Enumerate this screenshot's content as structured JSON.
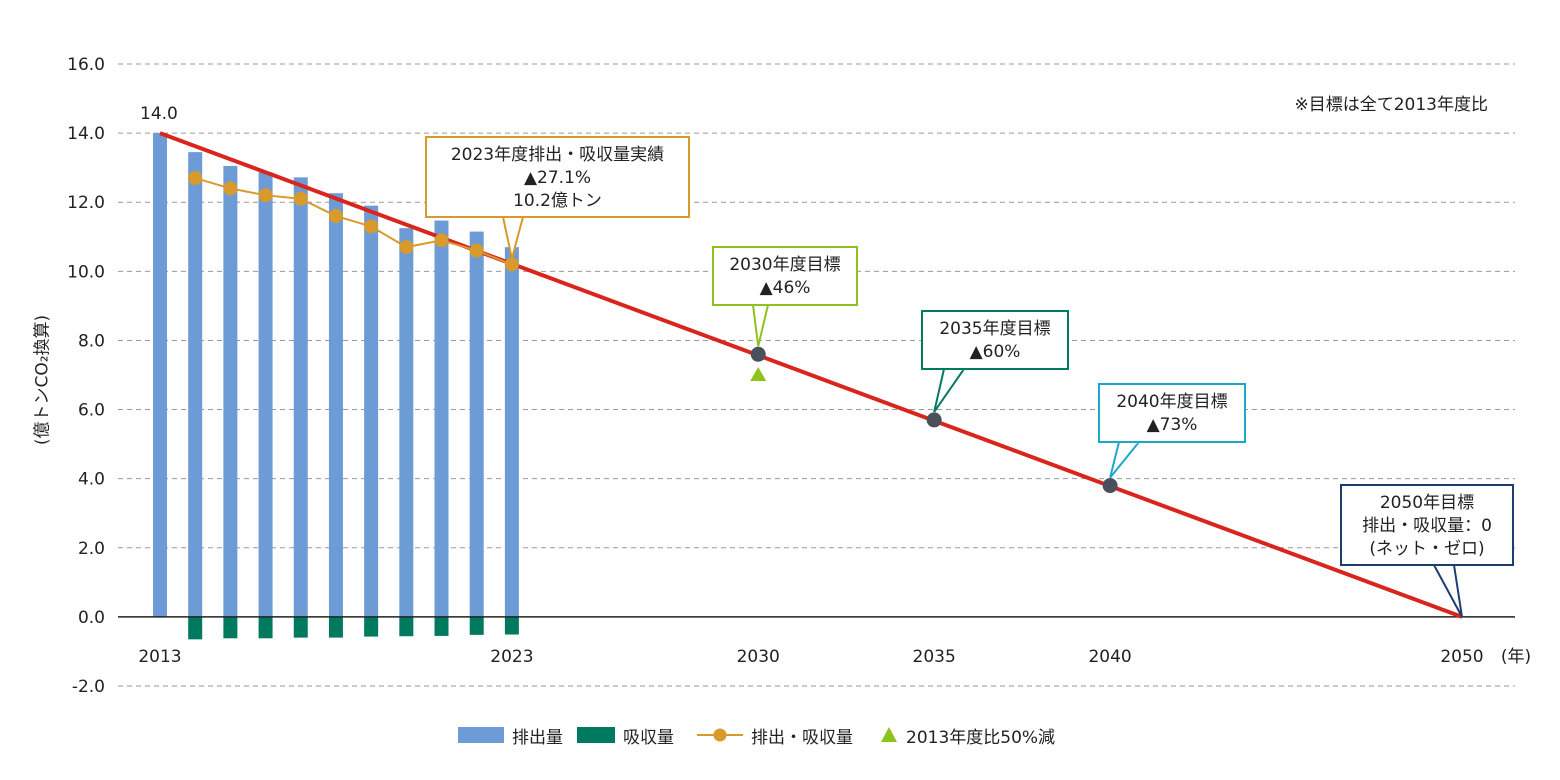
{
  "chart_data": {
    "type": "bar",
    "ylabel": "(億トンCO₂換算)",
    "ylim": [
      -2.0,
      16.0
    ],
    "y_ticks": [
      "16.0",
      "14.0",
      "12.0",
      "10.0",
      "8.0",
      "6.0",
      "4.0",
      "2.0",
      "0.0",
      "-2.0"
    ],
    "x_ticks": [
      "2013",
      "2023",
      "2030",
      "2035",
      "2040",
      "2050"
    ],
    "x_unit": "(年)",
    "grid": "dashed horizontal",
    "legend_position": "bottom",
    "note": "※目標は全て2013年度比",
    "first_value_label": "14.0",
    "series": [
      {
        "name": "排出量",
        "type": "bar",
        "color": "#6C9BD5",
        "x": [
          2013,
          2014,
          2015,
          2016,
          2017,
          2018,
          2019,
          2020,
          2021,
          2022,
          2023
        ],
        "values": [
          14.0,
          13.45,
          13.05,
          12.87,
          12.72,
          12.26,
          11.9,
          11.25,
          11.47,
          11.15,
          10.7
        ]
      },
      {
        "name": "吸収量",
        "type": "bar",
        "color": "#007A5E",
        "x": [
          2014,
          2015,
          2016,
          2017,
          2018,
          2019,
          2020,
          2021,
          2022,
          2023
        ],
        "values": [
          -0.65,
          -0.62,
          -0.62,
          -0.6,
          -0.6,
          -0.57,
          -0.56,
          -0.55,
          -0.52,
          -0.51
        ]
      },
      {
        "name": "排出・吸収量",
        "type": "line",
        "color": "#D89A2B",
        "x": [
          2014,
          2015,
          2016,
          2017,
          2018,
          2019,
          2020,
          2021,
          2022,
          2023
        ],
        "values": [
          12.7,
          12.4,
          12.2,
          12.1,
          11.6,
          11.3,
          10.7,
          10.9,
          10.6,
          10.2
        ]
      },
      {
        "name": "2013年度比50%減",
        "type": "marker",
        "color": "#8DC21F",
        "x": [
          2030
        ],
        "values": [
          7.0
        ]
      }
    ],
    "target_line": {
      "color": "#D9261C",
      "x": [
        2013,
        2050
      ],
      "values": [
        14.0,
        0.0
      ]
    },
    "target_points": [
      {
        "x": 2030,
        "value": 7.6
      },
      {
        "x": 2035,
        "value": 5.7
      },
      {
        "x": 2040,
        "value": 3.8
      }
    ],
    "target_point_color": "#4A4F5C",
    "callouts": [
      {
        "id": "c2023",
        "lines": [
          "2023年度排出・吸収量実績",
          "▲27.1%",
          "10.2億トン"
        ],
        "border": "#D89A2B"
      },
      {
        "id": "c2030",
        "lines": [
          "2030年度目標",
          "▲46%"
        ],
        "border": "#8DC21F"
      },
      {
        "id": "c2035",
        "lines": [
          "2035年度目標",
          "▲60%"
        ],
        "border": "#007A5E"
      },
      {
        "id": "c2040",
        "lines": [
          "2040年度目標",
          "▲73%"
        ],
        "border": "#1CA9C9"
      },
      {
        "id": "c2050",
        "lines": [
          "2050年目標",
          "排出・吸収量：0",
          "(ネット・ゼロ)"
        ],
        "border": "#1C3F6E"
      }
    ]
  }
}
